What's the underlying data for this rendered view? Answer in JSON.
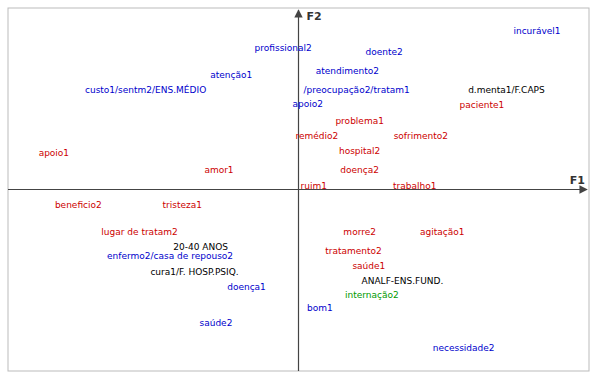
{
  "chart_data": {
    "type": "scatter",
    "x_label": "F1",
    "y_label": "F2",
    "labels": [
      "incurável1",
      "profissional2",
      "doente2",
      "atenção1",
      "atendimento2",
      "custo1/sentm2/ENS.MÉDIO",
      "/preocupação2/tratam1",
      "d.menta1/F.CAPS",
      "apoio2",
      "paciente1",
      "problema1",
      "remédio2",
      "sofrimento2",
      "hospital2",
      "apoio1",
      "amor1",
      "doença2",
      "ruim1",
      "trabalho1",
      "beneficio2",
      "tristeza1",
      "lugar de tratam2",
      "20-40 ANOS",
      "morre2",
      "agitação1",
      "enfermo2/casa de repouso2",
      "tratamento2",
      "cura1/F. HOSP.PSIQ.",
      "saúde1",
      "ANALF-ENS.FUND.",
      "doença1",
      "internação2",
      "bom1",
      "saúde2",
      "necessidade2"
    ],
    "x": [
      0.78,
      -0.05,
      0.28,
      -0.22,
      0.16,
      -0.5,
      0.19,
      0.68,
      0.03,
      0.6,
      0.2,
      0.06,
      0.4,
      0.2,
      -0.8,
      -0.26,
      0.2,
      0.05,
      0.38,
      -0.72,
      -0.38,
      -0.52,
      -0.32,
      0.2,
      0.47,
      -0.42,
      0.18,
      -0.34,
      0.23,
      0.34,
      -0.17,
      0.24,
      0.07,
      -0.27,
      0.54
    ],
    "y": [
      0.83,
      0.74,
      0.72,
      0.6,
      0.62,
      0.52,
      0.52,
      0.52,
      0.45,
      0.44,
      0.36,
      0.28,
      0.28,
      0.2,
      0.19,
      0.1,
      0.1,
      0.02,
      0.02,
      -0.08,
      -0.08,
      -0.22,
      -0.3,
      -0.22,
      -0.22,
      -0.35,
      -0.32,
      -0.43,
      -0.4,
      -0.48,
      -0.51,
      -0.55,
      -0.62,
      -0.7,
      -0.83
    ],
    "colors": [
      "#0000cc",
      "#0000cc",
      "#0000cc",
      "#0000cc",
      "#0000cc",
      "#0000cc",
      "#0000cc",
      "#000000",
      "#0000cc",
      "#cc0000",
      "#cc0000",
      "#cc0000",
      "#cc0000",
      "#cc0000",
      "#cc0000",
      "#cc0000",
      "#cc0000",
      "#cc0000",
      "#cc0000",
      "#cc0000",
      "#cc0000",
      "#cc0000",
      "#000000",
      "#cc0000",
      "#cc0000",
      "#0000cc",
      "#cc0000",
      "#000000",
      "#cc0000",
      "#000000",
      "#0000cc",
      "#009900",
      "#0000cc",
      "#0000cc",
      "#0000cc"
    ],
    "xlim": [
      -0.95,
      0.95
    ],
    "ylim": [
      -0.95,
      0.95
    ],
    "tick_labels": false
  }
}
